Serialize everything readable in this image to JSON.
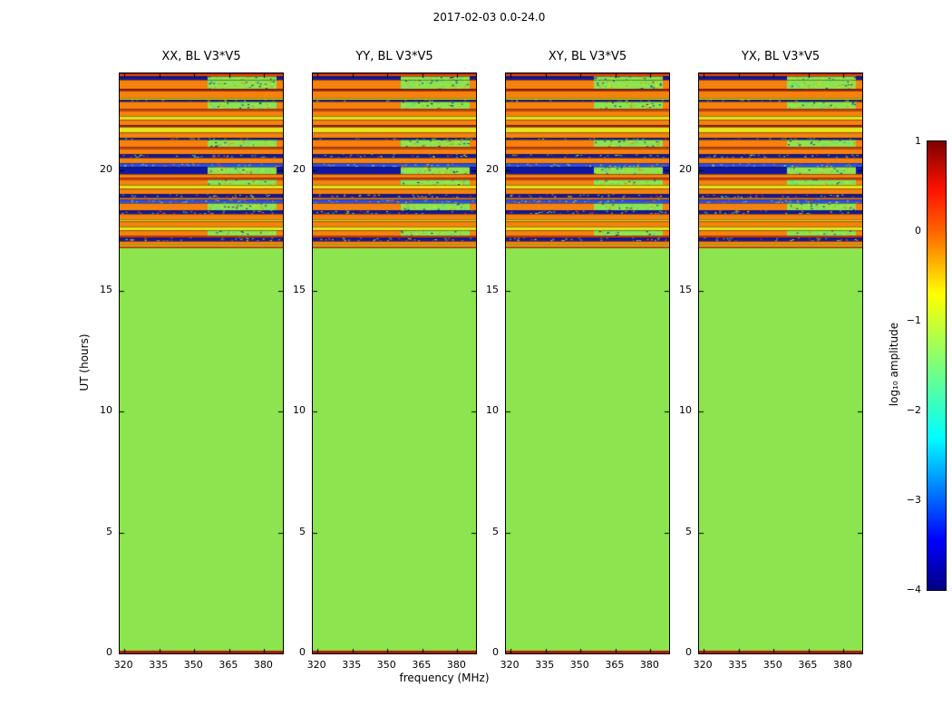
{
  "title": "2017-02-03 0.0-24.0",
  "xlabel": "frequency (MHz)",
  "ylabel": "UT (hours)",
  "panels": [
    {
      "title": "XX, BL V3*V5"
    },
    {
      "title": "YY, BL V3*V5"
    },
    {
      "title": "XY, BL V3*V5"
    },
    {
      "title": "YX, BL V3*V5"
    }
  ],
  "axes": {
    "xticks": [
      320,
      335,
      350,
      365,
      380
    ],
    "yticks": [
      0,
      5,
      10,
      15,
      20
    ],
    "xlim": [
      318,
      388
    ],
    "ylim_hours": [
      0,
      24
    ]
  },
  "colorbar": {
    "label": "log₁₀ amplitude",
    "ticks": [
      "1",
      "0",
      "−1",
      "−2",
      "−3",
      "−4"
    ],
    "vmin": -4,
    "vmax": 1
  },
  "chart_data": {
    "type": "heatmap",
    "title": "2017-02-03 0.0-24.0",
    "subplot_titles": [
      "XX, BL V3*V5",
      "YY, BL V3*V5",
      "XY, BL V3*V5",
      "YX, BL V3*V5"
    ],
    "xlabel": "frequency (MHz)",
    "ylabel": "UT (hours)",
    "xlim": [
      318,
      388
    ],
    "ylim": [
      0,
      24
    ],
    "colormap": "jet",
    "value_range_log10_amplitude": [
      -4,
      1
    ],
    "colorbar_stops": [
      [
        0,
        "#7f0000"
      ],
      [
        0.11,
        "#ff1400"
      ],
      [
        0.2,
        "#ff6400"
      ],
      [
        0.34,
        "#ffff00"
      ],
      [
        0.5,
        "#7dff7a"
      ],
      [
        0.66,
        "#00ffff"
      ],
      [
        0.89,
        "#0000ff"
      ],
      [
        1,
        "#000082"
      ]
    ],
    "background": {
      "color_key": "green",
      "log10_amplitude": -1.3,
      "t_range_hours": [
        0,
        16.76
      ]
    },
    "palette": {
      "green": {
        "hex": "#8ce44e",
        "logamp": -1.3
      },
      "orange": {
        "hex": "#f5820d",
        "logamp": -0.15
      },
      "red": {
        "hex": "#e8420e",
        "logamp": 0.3
      },
      "darkred": {
        "hex": "#a81800",
        "logamp": 0.7
      },
      "yellow": {
        "hex": "#e6e41c",
        "logamp": -0.8
      },
      "navy": {
        "hex": "#1018a0",
        "logamp": -3.8
      },
      "blue": {
        "hex": "#2850f0",
        "logamp": -3.2
      },
      "cyan": {
        "hex": "#2fd8c8",
        "logamp": -2.3
      }
    },
    "bands": [
      {
        "t0": 23.9,
        "t1": 24.0,
        "c": "red"
      },
      {
        "t0": 23.72,
        "t1": 23.9,
        "c": "navy",
        "s": "right"
      },
      {
        "t0": 23.38,
        "t1": 23.72,
        "c": "orange",
        "s": "right"
      },
      {
        "t0": 23.3,
        "t1": 23.38,
        "c": "darkred"
      },
      {
        "t0": 23.0,
        "t1": 23.3,
        "c": "orange"
      },
      {
        "t0": 22.92,
        "t1": 23.0,
        "c": "yellow"
      },
      {
        "t0": 22.84,
        "t1": 22.92,
        "c": "navy",
        "s": "full"
      },
      {
        "t0": 22.55,
        "t1": 22.84,
        "c": "orange",
        "s": "right"
      },
      {
        "t0": 22.47,
        "t1": 22.55,
        "c": "red"
      },
      {
        "t0": 22.25,
        "t1": 22.47,
        "c": "orange"
      },
      {
        "t0": 22.1,
        "t1": 22.25,
        "c": "yellow"
      },
      {
        "t0": 21.87,
        "t1": 22.1,
        "c": "orange"
      },
      {
        "t0": 21.8,
        "t1": 21.87,
        "c": "darkred"
      },
      {
        "t0": 21.57,
        "t1": 21.8,
        "c": "yellow"
      },
      {
        "t0": 21.35,
        "t1": 21.57,
        "c": "orange"
      },
      {
        "t0": 21.27,
        "t1": 21.35,
        "c": "navy",
        "s": "full"
      },
      {
        "t0": 20.97,
        "t1": 21.27,
        "c": "orange",
        "s": "right"
      },
      {
        "t0": 20.89,
        "t1": 20.97,
        "c": "red"
      },
      {
        "t0": 20.67,
        "t1": 20.89,
        "c": "orange"
      },
      {
        "t0": 20.52,
        "t1": 20.67,
        "c": "navy",
        "s": "full"
      },
      {
        "t0": 20.29,
        "t1": 20.52,
        "c": "orange"
      },
      {
        "t0": 20.14,
        "t1": 20.29,
        "c": "blue",
        "s": "full"
      },
      {
        "t0": 19.84,
        "t1": 20.14,
        "c": "navy",
        "s": "right"
      },
      {
        "t0": 19.69,
        "t1": 19.84,
        "c": "orange"
      },
      {
        "t0": 19.61,
        "t1": 19.69,
        "c": "red"
      },
      {
        "t0": 19.39,
        "t1": 19.61,
        "c": "orange",
        "s": "right"
      },
      {
        "t0": 19.24,
        "t1": 19.39,
        "c": "yellow"
      },
      {
        "t0": 19.01,
        "t1": 19.24,
        "c": "orange"
      },
      {
        "t0": 18.86,
        "t1": 19.01,
        "c": "navy",
        "s": "full"
      },
      {
        "t0": 18.78,
        "t1": 18.86,
        "c": "orange"
      },
      {
        "t0": 18.63,
        "t1": 18.78,
        "c": "blue",
        "s": "full"
      },
      {
        "t0": 18.33,
        "t1": 18.63,
        "c": "orange",
        "s": "right"
      },
      {
        "t0": 18.18,
        "t1": 18.33,
        "c": "navy",
        "s": "full"
      },
      {
        "t0": 17.95,
        "t1": 18.18,
        "c": "orange"
      },
      {
        "t0": 17.88,
        "t1": 17.95,
        "c": "yellow"
      },
      {
        "t0": 17.65,
        "t1": 17.88,
        "c": "orange"
      },
      {
        "t0": 17.5,
        "t1": 17.65,
        "c": "yellow"
      },
      {
        "t0": 17.28,
        "t1": 17.5,
        "c": "orange",
        "s": "right"
      },
      {
        "t0": 17.2,
        "t1": 17.28,
        "c": "red"
      },
      {
        "t0": 17.05,
        "t1": 17.2,
        "c": "navy",
        "s": "full"
      },
      {
        "t0": 16.9,
        "t1": 17.05,
        "c": "orange"
      },
      {
        "t0": 16.82,
        "t1": 16.9,
        "c": "yellow"
      },
      {
        "t0": 16.76,
        "t1": 16.82,
        "c": "red"
      },
      {
        "t0": 0.0,
        "t1": 0.12,
        "c": "darkred"
      }
    ]
  }
}
